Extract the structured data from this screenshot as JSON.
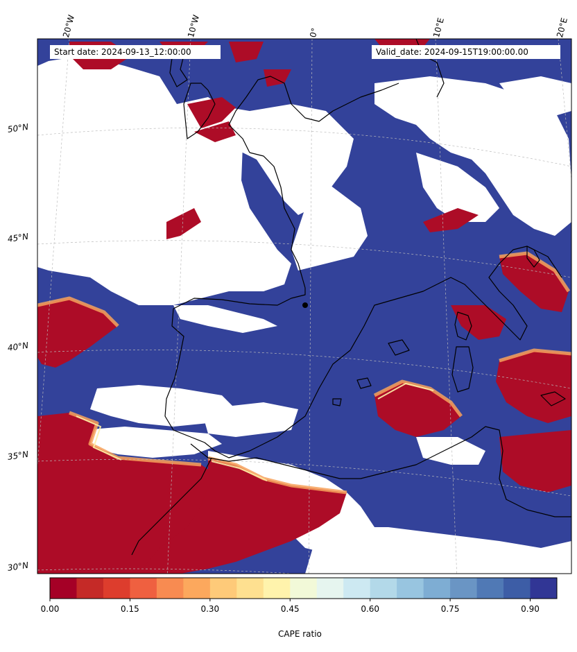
{
  "map": {
    "start_date_label": "Start date: 2024-09-13_12:00:00",
    "valid_date_label": "Valid_date: 2024-09-15T19:00:00.00",
    "longitude_labels": [
      "20°W",
      "10°W",
      "0°",
      "10°E",
      "20°E"
    ],
    "latitude_labels": [
      "50°N",
      "45°N",
      "40°N",
      "35°N",
      "30°N"
    ],
    "colors": {
      "high_ratio": "#313f95",
      "low_ratio": "#a50c25",
      "coastline": "#000000",
      "gridline": "#bbbbbb"
    }
  },
  "colorbar": {
    "label": "CAPE ratio",
    "ticks": [
      "0.00",
      "0.15",
      "0.30",
      "0.45",
      "0.60",
      "0.75",
      "0.90"
    ],
    "colors": [
      "#a50026",
      "#c52a27",
      "#dd3d2d",
      "#ef6040",
      "#f88b51",
      "#fca85d",
      "#feca79",
      "#fee090",
      "#fff3ac",
      "#f2f9d8",
      "#e6f5ef",
      "#cde9f2",
      "#b3d9e9",
      "#98c5e0",
      "#7eadd3",
      "#6a95c4",
      "#5079b5",
      "#3d5da6",
      "#313695"
    ]
  }
}
